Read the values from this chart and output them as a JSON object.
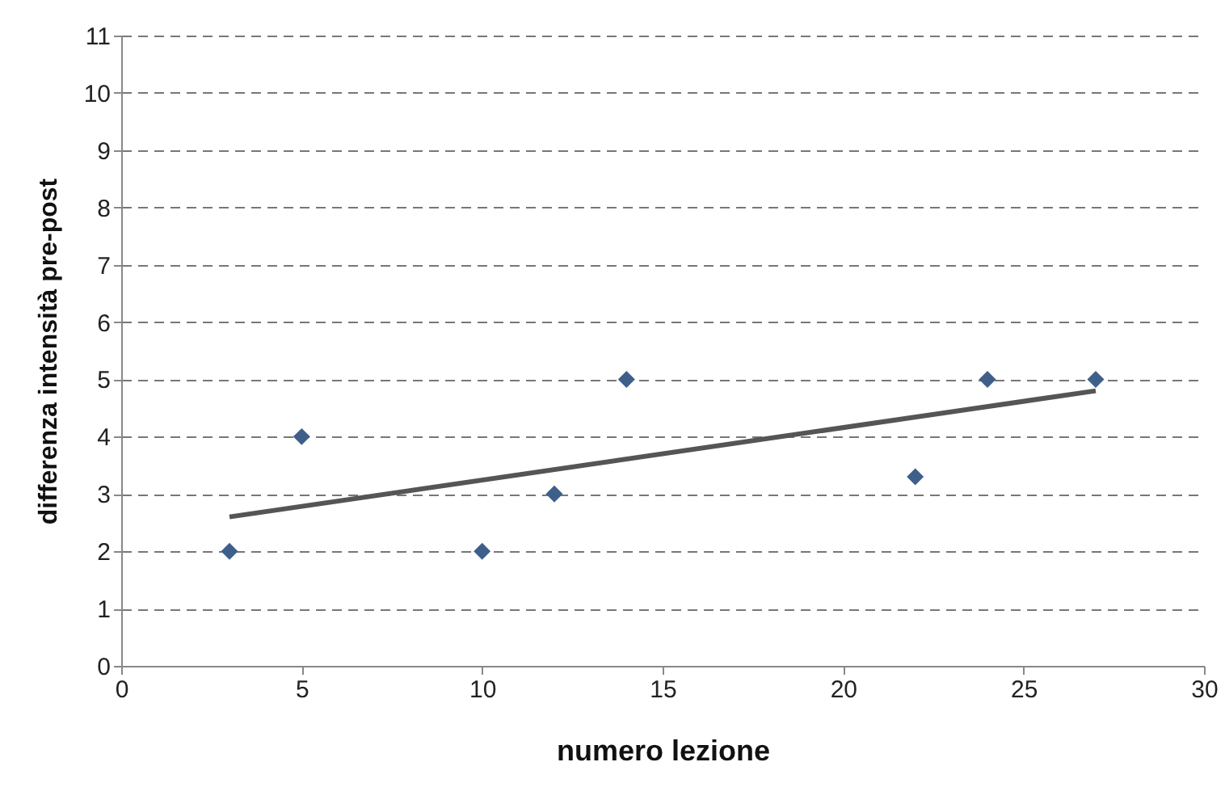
{
  "chart_data": {
    "type": "scatter",
    "xlabel": "numero lezione",
    "ylabel": "differenza intensità pre-post",
    "xlim": [
      0,
      30
    ],
    "xticks": [
      0,
      5,
      10,
      15,
      20,
      25,
      30
    ],
    "ylim": [
      0,
      11
    ],
    "yticks": [
      0,
      1,
      2,
      3,
      4,
      5,
      6,
      7,
      8,
      9,
      10,
      11
    ],
    "grid": "y",
    "marker": "diamond",
    "series": [
      {
        "type": "scatter",
        "color": "#3e5f8a",
        "x": [
          3,
          5,
          10,
          12,
          14,
          22,
          24,
          27
        ],
        "values": [
          2,
          4,
          2,
          3,
          5,
          3.3,
          5,
          5
        ]
      },
      {
        "type": "line",
        "color": "#555555",
        "x": [
          3,
          27
        ],
        "values": [
          2.6,
          4.8
        ],
        "marker": "none",
        "line_style": "solid"
      }
    ]
  }
}
